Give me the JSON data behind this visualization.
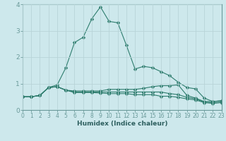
{
  "x": [
    0,
    1,
    2,
    3,
    4,
    5,
    6,
    7,
    8,
    9,
    10,
    11,
    12,
    13,
    14,
    15,
    16,
    17,
    18,
    19,
    20,
    21,
    22,
    23
  ],
  "line1": [
    0.5,
    0.5,
    0.55,
    0.85,
    0.95,
    1.6,
    2.55,
    2.75,
    3.45,
    3.9,
    3.35,
    3.3,
    2.45,
    1.55,
    1.65,
    1.6,
    1.45,
    1.3,
    1.05,
    0.85,
    0.8,
    0.45,
    0.32,
    0.35
  ],
  "line2": [
    0.5,
    0.5,
    0.55,
    0.85,
    0.88,
    0.75,
    0.72,
    0.72,
    0.72,
    0.72,
    0.78,
    0.78,
    0.78,
    0.78,
    0.82,
    0.88,
    0.92,
    0.92,
    0.95,
    0.55,
    0.45,
    0.32,
    0.32,
    0.35
  ],
  "line3": [
    0.5,
    0.5,
    0.55,
    0.85,
    0.88,
    0.75,
    0.68,
    0.68,
    0.68,
    0.68,
    0.68,
    0.68,
    0.68,
    0.68,
    0.68,
    0.68,
    0.68,
    0.62,
    0.58,
    0.48,
    0.42,
    0.3,
    0.28,
    0.3
  ],
  "line4": [
    0.5,
    0.5,
    0.55,
    0.85,
    0.88,
    0.75,
    0.66,
    0.66,
    0.66,
    0.64,
    0.62,
    0.62,
    0.62,
    0.58,
    0.58,
    0.58,
    0.52,
    0.52,
    0.48,
    0.42,
    0.38,
    0.28,
    0.25,
    0.28
  ],
  "color": "#2e7d6e",
  "bg_color": "#cde8ec",
  "grid_color": "#b8d4d8",
  "xlabel": "Humidex (Indice chaleur)",
  "ylim": [
    0,
    4.0
  ],
  "xlim": [
    0,
    23
  ],
  "yticks": [
    0,
    1,
    2,
    3,
    4
  ],
  "xticks": [
    0,
    1,
    2,
    3,
    4,
    5,
    6,
    7,
    8,
    9,
    10,
    11,
    12,
    13,
    14,
    15,
    16,
    17,
    18,
    19,
    20,
    21,
    22,
    23
  ],
  "marker": "D",
  "markersize": 2.5,
  "linewidth": 0.8,
  "tick_fontsize": 5.5,
  "xlabel_fontsize": 6.5
}
